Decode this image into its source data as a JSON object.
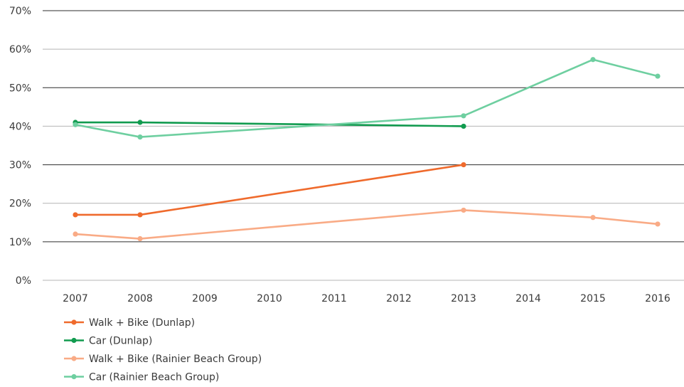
{
  "chart_data": {
    "type": "line",
    "title": "",
    "xlabel": "",
    "ylabel": "",
    "categories": [
      "2007",
      "2008",
      "2009",
      "2010",
      "2011",
      "2012",
      "2013",
      "2014",
      "2015",
      "2016"
    ],
    "y_ticks": [
      "0%",
      "10%",
      "20%",
      "30%",
      "40%",
      "50%",
      "60%",
      "70%"
    ],
    "ylim": [
      0,
      70
    ],
    "grid": true,
    "legend_position": "bottom-left",
    "series": [
      {
        "name": "Walk + Bike (Dunlap)",
        "color": "#ef6a2c",
        "points": [
          [
            2007,
            17
          ],
          [
            2008,
            17
          ],
          [
            2013,
            30
          ]
        ]
      },
      {
        "name": "Car (Dunlap)",
        "color": "#119b4f",
        "points": [
          [
            2007,
            41
          ],
          [
            2008,
            41
          ],
          [
            2013,
            40
          ]
        ]
      },
      {
        "name": "Walk + Bike (Rainier Beach Group)",
        "color": "#f9ab86",
        "points": [
          [
            2007,
            12
          ],
          [
            2008,
            10.8
          ],
          [
            2013,
            18.2
          ],
          [
            2015,
            16.3
          ],
          [
            2016,
            14.6
          ]
        ]
      },
      {
        "name": "Car (Rainier Beach Group)",
        "color": "#6ecfa0",
        "points": [
          [
            2007,
            40.4
          ],
          [
            2008,
            37.2
          ],
          [
            2013,
            42.7
          ],
          [
            2015,
            57.3
          ],
          [
            2016,
            53
          ]
        ]
      }
    ]
  }
}
